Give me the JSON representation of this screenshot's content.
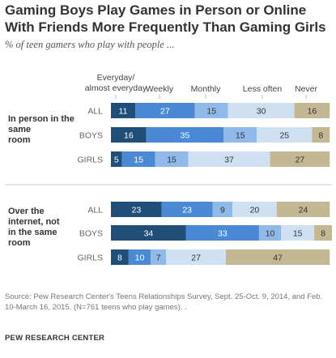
{
  "title": "Gaming Boys Play Games in Person or Online With Friends More Frequently Than Gaming Girls",
  "subtitle": "% of teen gamers who play with people ...",
  "source": "Source: Pew Research Center's Teens Relationships Survey, Sept. 25-Oct. 9, 2014, and Feb. 10-March 16, 2015. (N=761 teens who play games). .",
  "footer": "PEW RESEARCH CENTER",
  "chart_data": {
    "type": "bar",
    "orientation": "horizontal",
    "stacked": true,
    "series_labels": [
      "Everyday/\nalmost everyday",
      "Weekly",
      "Monthly",
      "Less often",
      "Never"
    ],
    "colors": [
      "#1f4e79",
      "#4a8ad4",
      "#8fb9e8",
      "#cfe0f3",
      "#c4b794"
    ],
    "label_colors": [
      "#ffffff",
      "#ffffff",
      "#333333",
      "#333333",
      "#333333"
    ],
    "groups": [
      {
        "label": "In person in the same room",
        "rows": [
          {
            "label": "ALL",
            "values": [
              11,
              27,
              15,
              30,
              16
            ]
          },
          {
            "label": "BOYS",
            "values": [
              16,
              35,
              15,
              25,
              8
            ]
          },
          {
            "label": "GIRLS",
            "values": [
              5,
              15,
              15,
              37,
              27
            ]
          }
        ]
      },
      {
        "label": "Over the internet, not in the same room",
        "rows": [
          {
            "label": "ALL",
            "values": [
              23,
              23,
              9,
              20,
              24
            ]
          },
          {
            "label": "BOYS",
            "values": [
              34,
              33,
              10,
              15,
              8
            ]
          },
          {
            "label": "GIRLS",
            "values": [
              8,
              10,
              7,
              27,
              47
            ]
          }
        ]
      }
    ]
  }
}
